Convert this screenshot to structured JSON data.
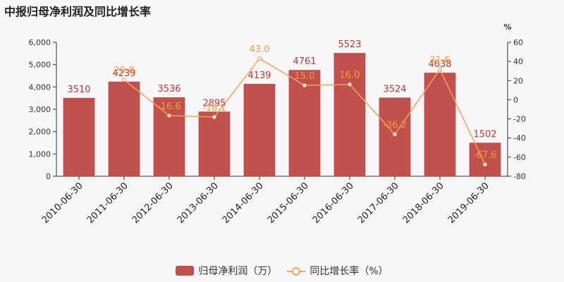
{
  "title": "中报归母净利润及同比增长率",
  "colors": {
    "bar": "#c0504d",
    "line": "#f7a154",
    "bar_label": "#c0392b",
    "line_label": "#f39c3c"
  },
  "chart_data": {
    "type": "bar",
    "categories": [
      "2010-06-30",
      "2011-06-30",
      "2012-06-30",
      "2013-06-30",
      "2014-06-30",
      "2015-06-30",
      "2016-06-30",
      "2017-06-30",
      "2018-06-30",
      "2019-06-30"
    ],
    "series": [
      {
        "name": "归母净利润（万）",
        "type": "bar",
        "axis": "left",
        "values": [
          3510,
          4239,
          3536,
          2895,
          4139,
          4761,
          5523,
          3524,
          4638,
          1502
        ],
        "labels": [
          "3510",
          "4239",
          "3536",
          "2895",
          "4139",
          "4761",
          "5523",
          "3524",
          "4638",
          "1502"
        ]
      },
      {
        "name": "同比增长率（%）",
        "type": "line",
        "axis": "right",
        "values": [
          null,
          20.8,
          -16.6,
          -18.1,
          43.0,
          15.0,
          16.0,
          -36.2,
          31.6,
          -67.6
        ],
        "labels": [
          "",
          "20.8",
          "-16.6",
          "-18.1",
          "43.0",
          "15.0",
          "16.0",
          "-36.2",
          "31.6",
          "-67.6"
        ]
      }
    ],
    "y_left": {
      "min": 0,
      "max": 6000,
      "ticks": [
        "0",
        "1,000",
        "2,000",
        "3,000",
        "4,000",
        "5,000",
        "6,000"
      ]
    },
    "y_right": {
      "min": -80,
      "max": 60,
      "label": "%",
      "ticks": [
        "-80",
        "-60",
        "-40",
        "-20",
        "0",
        "20",
        "40",
        "60"
      ]
    },
    "legend_position": "bottom",
    "grid": false
  },
  "legend": {
    "bar_label": "归母净利润（万）",
    "line_label": "同比增长率（%）"
  }
}
